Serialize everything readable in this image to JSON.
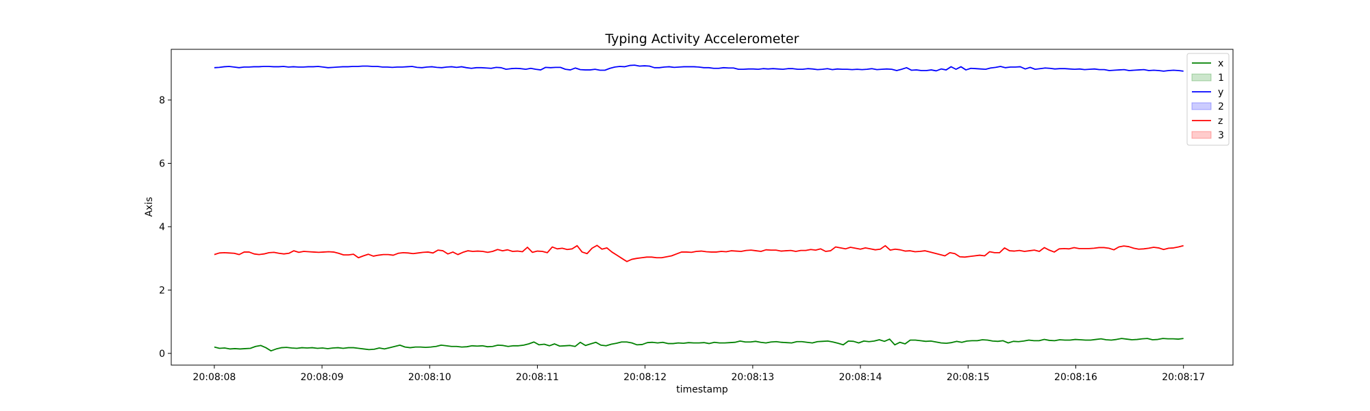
{
  "chart_data": {
    "type": "line",
    "title": "Typing Activity Accelerometer",
    "xlabel": "timestamp",
    "ylabel": "Axis",
    "ylim": [
      -0.37,
      9.6
    ],
    "xlim": [
      "20:08:07.6",
      "20:08:17.46"
    ],
    "yticks": [
      0,
      2,
      4,
      6,
      8
    ],
    "xticks": [
      "20:08:08",
      "20:08:09",
      "20:08:10",
      "20:08:11",
      "20:08:12",
      "20:08:13",
      "20:08:14",
      "20:08:15",
      "20:08:16",
      "20:08:17"
    ],
    "x_start": "20:08:08.00",
    "x_end": "20:08:17.00",
    "grid": false,
    "legend_placement": "top-right",
    "legend": [
      {
        "label": "x",
        "kind": "line",
        "color": "#008000"
      },
      {
        "label": "1",
        "kind": "patch",
        "color": "#008000"
      },
      {
        "label": "y",
        "kind": "line",
        "color": "#0000ff"
      },
      {
        "label": "2",
        "kind": "patch",
        "color": "#0000ff"
      },
      {
        "label": "z",
        "kind": "line",
        "color": "#ff0000"
      },
      {
        "label": "3",
        "kind": "patch",
        "color": "#ff0000"
      }
    ],
    "series": [
      {
        "name": "x",
        "color": "#008000",
        "values": [
          0.2,
          0.16,
          0.17,
          0.14,
          0.15,
          0.14,
          0.15,
          0.16,
          0.22,
          0.25,
          0.18,
          0.08,
          0.14,
          0.18,
          0.19,
          0.17,
          0.16,
          0.18,
          0.17,
          0.18,
          0.16,
          0.17,
          0.15,
          0.17,
          0.18,
          0.16,
          0.18,
          0.18,
          0.16,
          0.14,
          0.12,
          0.13,
          0.17,
          0.14,
          0.18,
          0.22,
          0.26,
          0.2,
          0.18,
          0.2,
          0.2,
          0.19,
          0.2,
          0.22,
          0.26,
          0.24,
          0.22,
          0.22,
          0.2,
          0.21,
          0.24,
          0.23,
          0.24,
          0.21,
          0.22,
          0.26,
          0.25,
          0.22,
          0.24,
          0.24,
          0.26,
          0.3,
          0.36,
          0.27,
          0.29,
          0.24,
          0.3,
          0.23,
          0.24,
          0.25,
          0.22,
          0.35,
          0.25,
          0.3,
          0.35,
          0.26,
          0.24,
          0.29,
          0.32,
          0.36,
          0.36,
          0.33,
          0.27,
          0.28,
          0.34,
          0.35,
          0.33,
          0.35,
          0.31,
          0.31,
          0.33,
          0.32,
          0.34,
          0.33,
          0.33,
          0.34,
          0.31,
          0.35,
          0.33,
          0.33,
          0.34,
          0.35,
          0.39,
          0.36,
          0.36,
          0.38,
          0.35,
          0.33,
          0.36,
          0.37,
          0.35,
          0.34,
          0.33,
          0.37,
          0.37,
          0.35,
          0.33,
          0.37,
          0.38,
          0.39,
          0.36,
          0.32,
          0.27,
          0.39,
          0.38,
          0.33,
          0.39,
          0.37,
          0.39,
          0.43,
          0.38,
          0.45,
          0.27,
          0.35,
          0.3,
          0.42,
          0.42,
          0.4,
          0.38,
          0.39,
          0.36,
          0.33,
          0.32,
          0.34,
          0.38,
          0.35,
          0.39,
          0.4,
          0.4,
          0.43,
          0.42,
          0.39,
          0.38,
          0.4,
          0.33,
          0.38,
          0.37,
          0.39,
          0.42,
          0.4,
          0.4,
          0.44,
          0.41,
          0.4,
          0.43,
          0.42,
          0.42,
          0.44,
          0.43,
          0.42,
          0.42,
          0.44,
          0.46,
          0.43,
          0.42,
          0.44,
          0.47,
          0.45,
          0.43,
          0.44,
          0.46,
          0.47,
          0.43,
          0.44,
          0.47,
          0.46,
          0.46,
          0.45,
          0.47
        ]
      },
      {
        "name": "y",
        "color": "#0000ff",
        "values": [
          9.02,
          9.03,
          9.05,
          9.06,
          9.04,
          9.02,
          9.04,
          9.04,
          9.05,
          9.05,
          9.06,
          9.06,
          9.05,
          9.05,
          9.06,
          9.04,
          9.05,
          9.04,
          9.04,
          9.05,
          9.05,
          9.06,
          9.04,
          9.02,
          9.03,
          9.04,
          9.05,
          9.05,
          9.06,
          9.06,
          9.07,
          9.07,
          9.06,
          9.06,
          9.04,
          9.04,
          9.03,
          9.04,
          9.04,
          9.05,
          9.06,
          9.03,
          9.02,
          9.04,
          9.05,
          9.03,
          9.02,
          9.04,
          9.05,
          9.03,
          9.05,
          9.02,
          9.0,
          9.02,
          9.02,
          9.01,
          9.0,
          9.03,
          9.02,
          8.97,
          8.99,
          9.0,
          8.99,
          8.97,
          9.0,
          8.97,
          8.95,
          9.03,
          9.02,
          9.03,
          9.03,
          8.97,
          8.95,
          9.01,
          8.96,
          8.95,
          8.95,
          8.97,
          8.94,
          8.94,
          9.0,
          9.04,
          9.06,
          9.05,
          9.09,
          9.1,
          9.07,
          9.08,
          9.07,
          9.02,
          9.02,
          9.04,
          9.05,
          9.03,
          9.04,
          9.05,
          9.05,
          9.05,
          9.04,
          9.02,
          9.02,
          9.0,
          9.0,
          9.02,
          9.01,
          9.01,
          8.97,
          8.97,
          8.98,
          8.98,
          8.97,
          8.99,
          8.98,
          8.99,
          8.98,
          8.97,
          8.99,
          8.99,
          8.97,
          8.97,
          8.99,
          8.98,
          8.96,
          8.97,
          8.99,
          8.96,
          8.98,
          8.97,
          8.97,
          8.96,
          8.97,
          8.96,
          8.97,
          8.99,
          8.96,
          8.97,
          8.98,
          8.97,
          8.93,
          8.97,
          9.02,
          8.94,
          8.95,
          8.93,
          8.93,
          8.95,
          8.92,
          8.98,
          8.95,
          9.05,
          8.97,
          9.05,
          8.95,
          9.0,
          8.99,
          8.98,
          8.97,
          9.01,
          9.03,
          9.06,
          9.02,
          9.04,
          9.04,
          9.05,
          8.98,
          9.03,
          8.97,
          8.99,
          9.01,
          9.0,
          8.98,
          8.99,
          8.99,
          8.98,
          8.97,
          8.98,
          8.96,
          8.97,
          8.98,
          8.96,
          8.96,
          8.93,
          8.94,
          8.95,
          8.96,
          8.93,
          8.94,
          8.95,
          8.96,
          8.93,
          8.94,
          8.93,
          8.91,
          8.93,
          8.94,
          8.93,
          8.91
        ]
      },
      {
        "name": "z",
        "color": "#ff0000",
        "values": [
          3.12,
          3.17,
          3.18,
          3.17,
          3.16,
          3.12,
          3.2,
          3.2,
          3.14,
          3.12,
          3.14,
          3.18,
          3.19,
          3.16,
          3.14,
          3.16,
          3.24,
          3.19,
          3.22,
          3.21,
          3.2,
          3.19,
          3.2,
          3.21,
          3.2,
          3.16,
          3.11,
          3.11,
          3.13,
          3.02,
          3.08,
          3.13,
          3.07,
          3.1,
          3.12,
          3.12,
          3.1,
          3.16,
          3.18,
          3.17,
          3.15,
          3.17,
          3.19,
          3.2,
          3.17,
          3.26,
          3.24,
          3.14,
          3.2,
          3.12,
          3.19,
          3.24,
          3.22,
          3.23,
          3.22,
          3.19,
          3.22,
          3.28,
          3.24,
          3.27,
          3.22,
          3.23,
          3.21,
          3.35,
          3.19,
          3.23,
          3.22,
          3.18,
          3.36,
          3.3,
          3.32,
          3.28,
          3.3,
          3.4,
          3.2,
          3.15,
          3.32,
          3.41,
          3.29,
          3.33,
          3.2,
          3.1,
          3.0,
          2.9,
          2.97,
          3.0,
          3.02,
          3.04,
          3.04,
          3.02,
          3.02,
          3.05,
          3.08,
          3.14,
          3.2,
          3.2,
          3.19,
          3.22,
          3.23,
          3.21,
          3.2,
          3.2,
          3.22,
          3.21,
          3.24,
          3.23,
          3.22,
          3.25,
          3.26,
          3.24,
          3.22,
          3.27,
          3.26,
          3.26,
          3.23,
          3.24,
          3.25,
          3.22,
          3.25,
          3.25,
          3.28,
          3.26,
          3.3,
          3.22,
          3.24,
          3.36,
          3.33,
          3.3,
          3.35,
          3.32,
          3.29,
          3.33,
          3.3,
          3.27,
          3.29,
          3.4,
          3.26,
          3.29,
          3.27,
          3.23,
          3.24,
          3.21,
          3.22,
          3.24,
          3.2,
          3.16,
          3.12,
          3.08,
          3.18,
          3.15,
          3.05,
          3.04,
          3.06,
          3.08,
          3.1,
          3.08,
          3.21,
          3.18,
          3.18,
          3.33,
          3.24,
          3.23,
          3.25,
          3.22,
          3.24,
          3.26,
          3.22,
          3.34,
          3.26,
          3.2,
          3.3,
          3.31,
          3.3,
          3.34,
          3.31,
          3.31,
          3.31,
          3.32,
          3.34,
          3.34,
          3.32,
          3.27,
          3.36,
          3.39,
          3.37,
          3.32,
          3.29,
          3.3,
          3.32,
          3.35,
          3.33,
          3.28,
          3.32,
          3.33,
          3.36,
          3.4
        ]
      }
    ]
  }
}
